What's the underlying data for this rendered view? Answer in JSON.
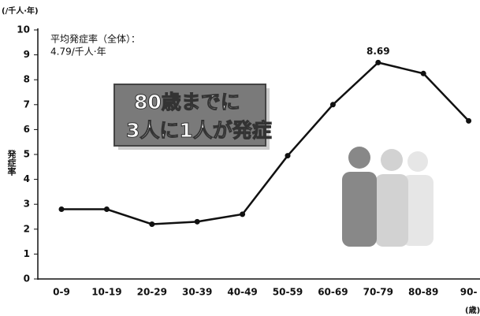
{
  "chart_data": {
    "type": "line",
    "y_unit": "(/千人·年)",
    "x_unit": "(歳)",
    "y_label": "発症率",
    "annotation": [
      "平均発症率（全体）：",
      "4.79/千人·年"
    ],
    "banner": [
      "80歳までに",
      "3人に1人が発症"
    ],
    "categories": [
      "0-9",
      "10-19",
      "20-29",
      "30-39",
      "40-49",
      "50-59",
      "60-69",
      "70-79",
      "80-89",
      "90-"
    ],
    "values": [
      2.8,
      2.8,
      2.2,
      2.3,
      2.6,
      4.95,
      7.0,
      8.69,
      8.25,
      6.35
    ],
    "value_labels": [
      null,
      null,
      null,
      null,
      null,
      null,
      null,
      "8.69",
      null,
      null
    ],
    "color": "#111111",
    "ylim": [
      0,
      10
    ],
    "yticks": [
      0,
      1,
      2,
      3,
      4,
      5,
      6,
      7,
      8,
      9,
      10
    ]
  }
}
